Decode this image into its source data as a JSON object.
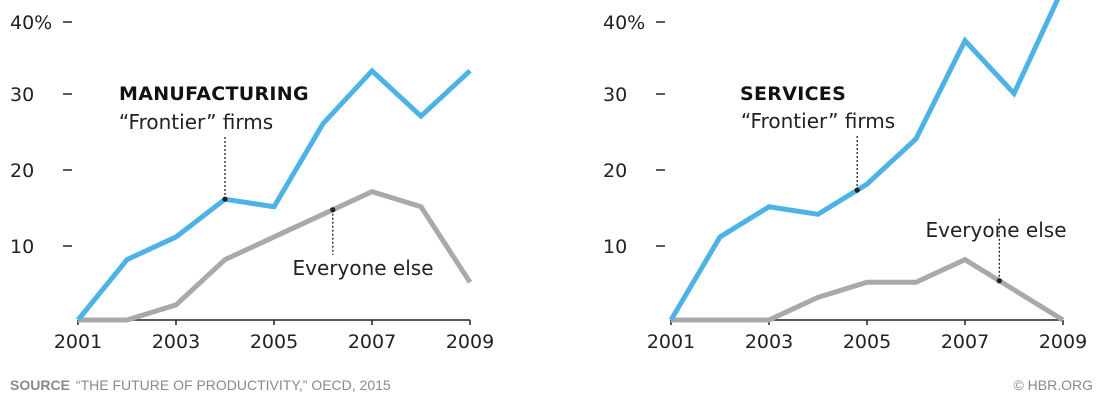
{
  "chart_data": [
    {
      "type": "line",
      "title": "MANUFACTURING",
      "x": [
        2001,
        2002,
        2003,
        2004,
        2005,
        2006,
        2007,
        2008,
        2009
      ],
      "xticks": [
        "2001",
        "2003",
        "2005",
        "2007",
        "2009"
      ],
      "yticks": [
        "40%",
        "30",
        "20",
        "10"
      ],
      "ylim": [
        0,
        40
      ],
      "series": [
        {
          "name": "“Frontier” firms",
          "color": "#4db3e6",
          "values": [
            0,
            8,
            11,
            16,
            15,
            26,
            33,
            27,
            33
          ]
        },
        {
          "name": "Everyone else",
          "color": "#a7a9ac",
          "values": [
            0,
            0,
            2,
            8,
            11,
            14,
            17,
            15,
            5
          ]
        }
      ],
      "annotations": {
        "frontier_x": 2004,
        "everyone_x": 2006.2
      }
    },
    {
      "type": "line",
      "title": "SERVICES",
      "x": [
        2001,
        2002,
        2003,
        2004,
        2005,
        2006,
        2007,
        2008,
        2009
      ],
      "xticks": [
        "2001",
        "2003",
        "2005",
        "2007",
        "2009"
      ],
      "yticks": [
        "40%",
        "30",
        "20",
        "10"
      ],
      "ylim": [
        0,
        40
      ],
      "series": [
        {
          "name": "“Frontier” firms",
          "color": "#4db3e6",
          "values": [
            0,
            11,
            15,
            14,
            18,
            24,
            37,
            30,
            44
          ]
        },
        {
          "name": "Everyone else",
          "color": "#a7a9ac",
          "values": [
            0,
            0,
            0,
            3,
            5,
            5,
            8,
            4,
            0
          ]
        }
      ],
      "annotations": {
        "frontier_x": 2004.8,
        "everyone_x": 2007.7
      }
    }
  ],
  "footer": {
    "source_label": "SOURCE",
    "source_text": "“THE FUTURE OF PRODUCTIVITY,” OECD, 2015",
    "credit": "© HBR.ORG"
  }
}
